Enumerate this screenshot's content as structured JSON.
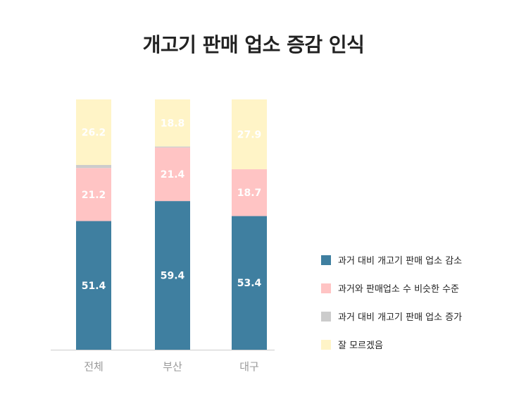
{
  "chart_data": {
    "type": "bar",
    "stacked": true,
    "title": "개고기 판매 업소 증감 인식",
    "categories": [
      "전체",
      "부산",
      "대구"
    ],
    "series": [
      {
        "name": "과거 대비 개고기 판매 업소 감소",
        "color": "#3f7fa0",
        "values": [
          51.4,
          59.4,
          53.4
        ]
      },
      {
        "name": "과거와 판매업소 수 비슷한 수준",
        "color": "#ffc4c4",
        "values": [
          21.2,
          21.4,
          18.7
        ]
      },
      {
        "name": "과거 대비 개고기 판매 업소 증가",
        "color": "#cccccc",
        "values": [
          1.2,
          0.4,
          0.0
        ]
      },
      {
        "name": "잘 모르겠음",
        "color": "#fff4c7",
        "values": [
          26.2,
          18.8,
          27.9
        ]
      }
    ],
    "data_labels": [
      [
        "51.4",
        "59.4",
        "53.4"
      ],
      [
        "21.2",
        "21.4",
        "18.7"
      ],
      [
        "",
        "",
        ""
      ],
      [
        "26.2",
        "18.8",
        "27.9"
      ]
    ],
    "xlabel": "",
    "ylabel": "",
    "ylim": [
      0,
      100
    ],
    "grid": false,
    "legend_position": "right"
  }
}
